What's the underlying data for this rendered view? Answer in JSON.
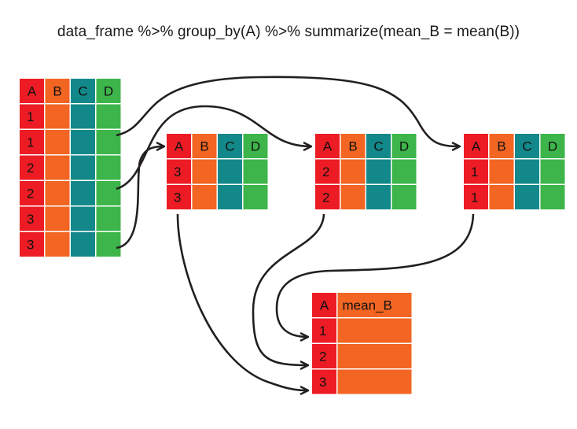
{
  "title": "data_frame %>% group_by(A) %>% summarize(mean_B = mean(B))",
  "colors": {
    "A": "#ed1c24",
    "B": "#f26522",
    "C": "#13888a",
    "D": "#3db54a",
    "arrow": "#231f20"
  },
  "source_table": {
    "headers": [
      "A",
      "B",
      "C",
      "D"
    ],
    "a_values": [
      "1",
      "1",
      "2",
      "2",
      "3",
      "3"
    ]
  },
  "groups": [
    {
      "headers": [
        "A",
        "B",
        "C",
        "D"
      ],
      "a_values": [
        "3",
        "3"
      ]
    },
    {
      "headers": [
        "A",
        "B",
        "C",
        "D"
      ],
      "a_values": [
        "2",
        "2"
      ]
    },
    {
      "headers": [
        "A",
        "B",
        "C",
        "D"
      ],
      "a_values": [
        "1",
        "1"
      ]
    }
  ],
  "result_table": {
    "headers": [
      "A",
      "mean_B"
    ],
    "a_values": [
      "1",
      "2",
      "3"
    ]
  }
}
